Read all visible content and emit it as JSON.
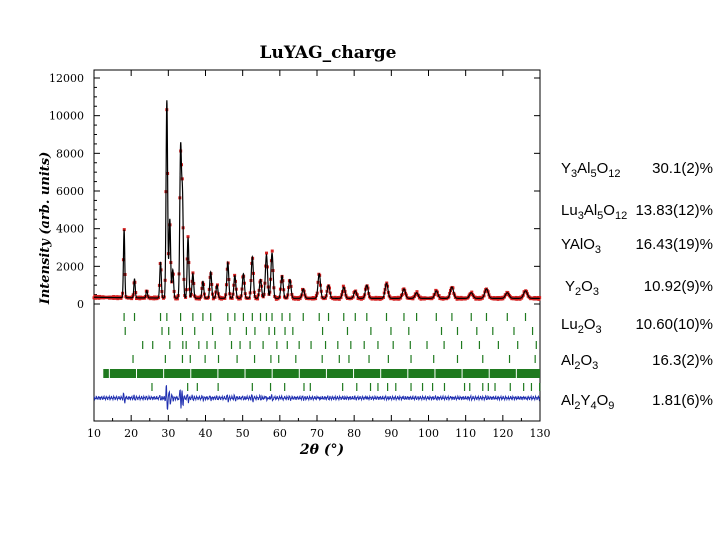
{
  "chart_data": {
    "type": "line",
    "title": "LuYAG_charge",
    "xlabel": "2θ (°)",
    "ylabel": "Intensity (arb. units)",
    "xlim": [
      10,
      130
    ],
    "ylim": [
      0,
      12000
    ],
    "x_ticks": [
      "10",
      "20",
      "30",
      "40",
      "50",
      "60",
      "70",
      "80",
      "90",
      "100",
      "110",
      "120",
      "130"
    ],
    "y_ticks": [
      "0",
      "2000",
      "4000",
      "6000",
      "8000",
      "10000",
      "12000"
    ],
    "background_level": 300,
    "peaks": [
      {
        "x": 18.1,
        "y": 3900
      },
      {
        "x": 20.9,
        "y": 1300
      },
      {
        "x": 24.2,
        "y": 700
      },
      {
        "x": 27.9,
        "y": 2200
      },
      {
        "x": 29.6,
        "y": 10800
      },
      {
        "x": 30.4,
        "y": 4500
      },
      {
        "x": 31.2,
        "y": 1800
      },
      {
        "x": 33.3,
        "y": 8100
      },
      {
        "x": 33.8,
        "y": 5600
      },
      {
        "x": 35.3,
        "y": 3500
      },
      {
        "x": 36.6,
        "y": 1600
      },
      {
        "x": 39.3,
        "y": 1200
      },
      {
        "x": 41.4,
        "y": 1700
      },
      {
        "x": 43.1,
        "y": 1000
      },
      {
        "x": 46.0,
        "y": 2200
      },
      {
        "x": 47.9,
        "y": 1500
      },
      {
        "x": 50.2,
        "y": 1600
      },
      {
        "x": 52.6,
        "y": 2500
      },
      {
        "x": 54.8,
        "y": 1300
      },
      {
        "x": 56.4,
        "y": 2600
      },
      {
        "x": 57.9,
        "y": 2700
      },
      {
        "x": 60.6,
        "y": 1500
      },
      {
        "x": 62.7,
        "y": 1300
      },
      {
        "x": 66.3,
        "y": 800
      },
      {
        "x": 70.6,
        "y": 1600
      },
      {
        "x": 73.1,
        "y": 1000
      },
      {
        "x": 77.2,
        "y": 900
      },
      {
        "x": 80.3,
        "y": 700
      },
      {
        "x": 83.4,
        "y": 1000
      },
      {
        "x": 88.7,
        "y": 1100
      },
      {
        "x": 93.4,
        "y": 800
      },
      {
        "x": 96.8,
        "y": 600
      },
      {
        "x": 102.1,
        "y": 700
      },
      {
        "x": 106.3,
        "y": 900
      },
      {
        "x": 111.5,
        "y": 600
      },
      {
        "x": 115.6,
        "y": 800
      },
      {
        "x": 121.2,
        "y": 600
      },
      {
        "x": 126.1,
        "y": 700
      }
    ],
    "colors": {
      "observed": "#d42020",
      "calculated": "#000000",
      "tick_marks": "#1f7a1f",
      "difference": "#1f2fb0"
    },
    "grid": false,
    "series": [
      {
        "name": "Y3Al5O12",
        "fraction": "30.1(2)%"
      },
      {
        "name": "Lu3Al5O12",
        "fraction": "13.83(12)%"
      },
      {
        "name": "YAlO3",
        "fraction": "16.43(19)%"
      },
      {
        "name": "Y2O3",
        "fraction": "10.92(9)%"
      },
      {
        "name": "Lu2O3",
        "fraction": "10.60(10)%"
      },
      {
        "name": "Al2O3",
        "fraction": "16.3(2)%"
      },
      {
        "name": "Al2Y4O9",
        "fraction": "1.81(6)%"
      }
    ],
    "reflections": {
      "Y3Al5O12": [
        18.1,
        20.9,
        27.9,
        29.6,
        33.3,
        36.6,
        39.3,
        41.4,
        46.0,
        47.9,
        50.2,
        52.6,
        54.8,
        56.4,
        57.9,
        60.6,
        62.7,
        66.3,
        70.6,
        73.1,
        77.2,
        80.3,
        83.4,
        88.7,
        93.4,
        96.8,
        102.1,
        106.3,
        111.5,
        115.6,
        121.2,
        126.1
      ],
      "Lu3Al5O12": [
        18.4,
        28.3,
        30.1,
        33.8,
        37.1,
        41.9,
        46.6,
        51.0,
        53.3,
        57.1,
        58.6,
        61.4,
        63.5,
        71.5,
        78.2,
        84.5,
        89.9,
        94.7,
        103.5,
        107.8,
        113.0,
        117.3,
        123.0,
        128.0
      ],
      "YAlO3": [
        23.1,
        25.8,
        30.4,
        33.9,
        34.8,
        38.2,
        40.4,
        42.6,
        47.0,
        49.3,
        52.0,
        55.5,
        59.2,
        62.0,
        65.2,
        68.4,
        72.3,
        75.6,
        79.1,
        82.7,
        86.4,
        90.5,
        95.1,
        99.6,
        104.2,
        108.9,
        113.7,
        118.8,
        124.0,
        129.0
      ],
      "Y2O3": [
        20.5,
        29.2,
        33.8,
        35.9,
        39.9,
        43.5,
        48.5,
        53.2,
        57.6,
        59.7,
        64.3,
        71.4,
        76.0,
        78.6,
        84.0,
        89.2,
        95.3,
        101.4,
        107.8,
        114.6,
        121.8,
        128.7
      ],
      "Lu2O3": [
        21.1,
        30.0,
        34.8,
        37.0,
        41.1,
        44.9,
        50.1,
        55.0,
        59.5,
        61.8,
        66.6,
        74.1,
        79.0,
        81.7,
        87.4,
        93.1,
        99.6,
        106.1,
        113.1,
        120.4,
        127.9
      ],
      "Al2O3": [
        25.6,
        35.2,
        37.8,
        43.4,
        52.6,
        57.5,
        61.3,
        66.5,
        68.2,
        76.9,
        80.7,
        84.4,
        86.4,
        89.0,
        91.2,
        95.3,
        98.4,
        101.1,
        104.3,
        109.7,
        111.1,
        114.6,
        116.1,
        117.9,
        122.0,
        125.6,
        127.7,
        129.9
      ],
      "Al2Y4O9": "dense"
    }
  }
}
